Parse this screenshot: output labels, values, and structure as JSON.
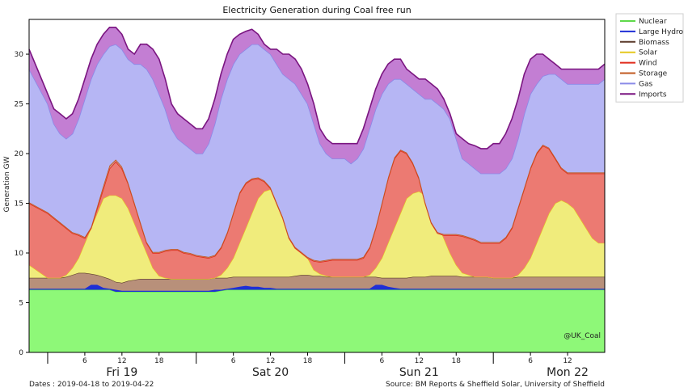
{
  "chart_data": {
    "type": "area",
    "title": "Electricity Generation during Coal free run",
    "ylabel": "Generation GW",
    "xlabel": "",
    "ylim": [
      0,
      33.5
    ],
    "yticks": [
      0,
      5,
      10,
      15,
      20,
      25,
      30
    ],
    "xlim_hours": [
      0,
      103
    ],
    "hour_ticks": [
      {
        "h": 0,
        "label": ""
      },
      {
        "h": 6,
        "label": "6"
      },
      {
        "h": 12,
        "label": "12"
      },
      {
        "h": 18,
        "label": "18"
      },
      {
        "h": 24,
        "label": ""
      },
      {
        "h": 30,
        "label": "6"
      },
      {
        "h": 36,
        "label": "12"
      },
      {
        "h": 42,
        "label": "18"
      },
      {
        "h": 48,
        "label": ""
      },
      {
        "h": 54,
        "label": "6"
      },
      {
        "h": 60,
        "label": "12"
      },
      {
        "h": 66,
        "label": "18"
      },
      {
        "h": 72,
        "label": ""
      },
      {
        "h": 78,
        "label": "6"
      },
      {
        "h": 84,
        "label": "12"
      }
    ],
    "day_labels": [
      {
        "h": 12,
        "label": "Fri 19"
      },
      {
        "h": 36,
        "label": "Sat 20"
      },
      {
        "h": 60,
        "label": "Sun 21"
      },
      {
        "h": 84,
        "label": "Mon 22"
      }
    ],
    "hours": [
      -3,
      0,
      1,
      2,
      3,
      4,
      5,
      6,
      7,
      8,
      9,
      10,
      11,
      12,
      13,
      14,
      15,
      16,
      17,
      18,
      19,
      20,
      21,
      22,
      23,
      24,
      25,
      26,
      27,
      28,
      29,
      30,
      31,
      32,
      33,
      34,
      35,
      36,
      37,
      38,
      39,
      40,
      41,
      42,
      43,
      44,
      45,
      46,
      47,
      48,
      49,
      50,
      51,
      52,
      53,
      54,
      55,
      56,
      57,
      58,
      59,
      60,
      61,
      62,
      63,
      64,
      65,
      66,
      67,
      68,
      69,
      70,
      71,
      72,
      73,
      74,
      75,
      76,
      77,
      78,
      79,
      80,
      81,
      82,
      83,
      84,
      85,
      86,
      87,
      88,
      89,
      90
    ],
    "legend_position": "outside-right",
    "series": [
      {
        "name": "Nuclear",
        "color": "#8ef878",
        "edge": "#5fd94a",
        "top": [
          6.3,
          6.3,
          6.3,
          6.3,
          6.3,
          6.3,
          6.3,
          6.3,
          6.3,
          6.3,
          6.3,
          6.3,
          6.1,
          6.1,
          6.1,
          6.1,
          6.1,
          6.1,
          6.1,
          6.1,
          6.1,
          6.1,
          6.1,
          6.1,
          6.1,
          6.1,
          6.1,
          6.1,
          6.1,
          6.2,
          6.3,
          6.3,
          6.3,
          6.3,
          6.3,
          6.3,
          6.3,
          6.3,
          6.3,
          6.3,
          6.3,
          6.3,
          6.3,
          6.3,
          6.3,
          6.3,
          6.3,
          6.3,
          6.3,
          6.3,
          6.3,
          6.3,
          6.3,
          6.3,
          6.3,
          6.3,
          6.3,
          6.3,
          6.3,
          6.3,
          6.3,
          6.3,
          6.3,
          6.3,
          6.3,
          6.3,
          6.3,
          6.3,
          6.3,
          6.3,
          6.3,
          6.3,
          6.3,
          6.3,
          6.3,
          6.3,
          6.3,
          6.3,
          6.3,
          6.3,
          6.3,
          6.3,
          6.3,
          6.3,
          6.3,
          6.3,
          6.3,
          6.3,
          6.3,
          6.3,
          6.3,
          6.3
        ]
      },
      {
        "name": "Large Hydro",
        "color": "#1f2fd6",
        "edge": "#1f2fd6",
        "top": [
          6.4,
          6.4,
          6.4,
          6.4,
          6.4,
          6.4,
          6.4,
          6.4,
          6.8,
          6.8,
          6.5,
          6.4,
          6.3,
          6.2,
          6.2,
          6.2,
          6.2,
          6.2,
          6.2,
          6.2,
          6.2,
          6.2,
          6.2,
          6.2,
          6.2,
          6.2,
          6.2,
          6.2,
          6.3,
          6.3,
          6.4,
          6.5,
          6.6,
          6.7,
          6.6,
          6.6,
          6.5,
          6.5,
          6.4,
          6.4,
          6.4,
          6.4,
          6.4,
          6.4,
          6.4,
          6.4,
          6.4,
          6.4,
          6.4,
          6.4,
          6.4,
          6.4,
          6.4,
          6.4,
          6.8,
          6.8,
          6.6,
          6.5,
          6.4,
          6.4,
          6.4,
          6.4,
          6.4,
          6.4,
          6.4,
          6.4,
          6.4,
          6.4,
          6.4,
          6.4,
          6.4,
          6.4,
          6.4,
          6.4,
          6.4,
          6.4,
          6.4,
          6.4,
          6.4,
          6.4,
          6.4,
          6.4,
          6.4,
          6.4,
          6.4,
          6.4,
          6.4,
          6.4,
          6.4,
          6.4,
          6.4,
          6.4
        ]
      },
      {
        "name": "Biomass",
        "color": "#b8907a",
        "edge": "#5a3a2a",
        "top": [
          7.5,
          7.5,
          7.5,
          7.5,
          7.6,
          7.8,
          8.0,
          8.0,
          7.9,
          7.8,
          7.6,
          7.4,
          7.1,
          7.0,
          7.2,
          7.3,
          7.4,
          7.4,
          7.4,
          7.4,
          7.4,
          7.4,
          7.4,
          7.4,
          7.4,
          7.4,
          7.4,
          7.4,
          7.5,
          7.5,
          7.5,
          7.6,
          7.6,
          7.6,
          7.6,
          7.6,
          7.6,
          7.6,
          7.6,
          7.6,
          7.6,
          7.7,
          7.8,
          7.8,
          7.7,
          7.7,
          7.6,
          7.6,
          7.6,
          7.6,
          7.6,
          7.6,
          7.6,
          7.6,
          7.6,
          7.5,
          7.5,
          7.5,
          7.5,
          7.5,
          7.6,
          7.6,
          7.6,
          7.7,
          7.7,
          7.7,
          7.7,
          7.7,
          7.6,
          7.6,
          7.6,
          7.6,
          7.6,
          7.5,
          7.5,
          7.5,
          7.5,
          7.6,
          7.6,
          7.6,
          7.6,
          7.6,
          7.6,
          7.6,
          7.6,
          7.6,
          7.6,
          7.6,
          7.6,
          7.6,
          7.6,
          7.6
        ]
      },
      {
        "name": "Solar",
        "color": "#f0ec7c",
        "edge": "#e6c81e",
        "top": [
          8.8,
          7.5,
          7.5,
          7.5,
          7.8,
          8.5,
          9.5,
          11.0,
          12.5,
          14.0,
          15.5,
          15.8,
          15.8,
          15.5,
          14.5,
          13.0,
          11.5,
          10.0,
          8.5,
          7.7,
          7.5,
          7.4,
          7.4,
          7.4,
          7.4,
          7.4,
          7.4,
          7.4,
          7.5,
          7.8,
          8.5,
          9.5,
          11.0,
          12.5,
          14.0,
          15.5,
          16.2,
          16.4,
          16.2,
          15.5,
          14.0,
          12.5,
          11.0,
          9.5,
          8.3,
          7.9,
          7.7,
          7.6,
          7.6,
          7.6,
          7.6,
          7.6,
          7.6,
          7.8,
          8.5,
          9.5,
          11.0,
          12.5,
          14.0,
          15.5,
          16.0,
          16.2,
          15.8,
          14.5,
          13.0,
          11.5,
          10.0,
          8.8,
          8.0,
          7.8,
          7.6,
          7.6,
          7.6,
          7.5,
          7.5,
          7.5,
          7.5,
          7.8,
          8.5,
          9.5,
          11.0,
          12.5,
          14.0,
          15.0,
          15.3,
          15.0,
          14.5,
          13.5,
          12.5,
          11.5,
          11.0,
          11.0
        ]
      },
      {
        "name": "Wind",
        "color": "#ec7a72",
        "edge": "#e02a1a",
        "top": [
          15.0,
          14.0,
          13.5,
          13.0,
          12.5,
          12.0,
          11.8,
          11.5,
          12.5,
          14.5,
          16.5,
          18.5,
          19.2,
          18.5,
          17.0,
          15.0,
          13.0,
          11.0,
          10.0,
          10.0,
          10.2,
          10.3,
          10.3,
          10.0,
          9.9,
          9.7,
          9.6,
          9.5,
          9.7,
          10.5,
          12.0,
          14.0,
          16.0,
          17.0,
          17.4,
          17.5,
          17.2,
          16.5,
          15.0,
          13.5,
          11.5,
          10.5,
          10.0,
          9.5,
          9.2,
          9.1,
          9.2,
          9.3,
          9.3,
          9.3,
          9.3,
          9.3,
          9.5,
          10.5,
          12.5,
          15.0,
          17.5,
          19.5,
          20.3,
          20.0,
          19.0,
          17.5,
          15.0,
          13.0,
          12.0,
          11.8,
          11.8,
          11.8,
          11.7,
          11.5,
          11.3,
          11.0,
          11.0,
          11.0,
          11.0,
          11.5,
          12.5,
          14.5,
          16.5,
          18.5,
          20.0,
          20.8,
          20.5,
          19.5,
          18.5,
          18.0,
          18.0,
          18.0,
          18.0,
          18.0,
          18.0,
          18.0
        ]
      },
      {
        "name": "Storage",
        "color": "#d09080",
        "edge": "#c05a20",
        "top": [
          15.1,
          14.1,
          13.6,
          13.1,
          12.6,
          12.1,
          11.9,
          11.6,
          12.6,
          14.7,
          16.8,
          18.8,
          19.4,
          18.7,
          17.1,
          15.1,
          13.1,
          11.1,
          10.1,
          10.1,
          10.3,
          10.4,
          10.4,
          10.1,
          10.0,
          9.8,
          9.7,
          9.6,
          9.8,
          10.6,
          12.1,
          14.1,
          16.1,
          17.1,
          17.5,
          17.6,
          17.3,
          16.6,
          15.1,
          13.6,
          11.6,
          10.6,
          10.1,
          9.6,
          9.3,
          9.2,
          9.3,
          9.4,
          9.4,
          9.4,
          9.4,
          9.4,
          9.6,
          10.6,
          12.6,
          15.1,
          17.6,
          19.6,
          20.4,
          20.1,
          19.1,
          17.6,
          15.1,
          13.1,
          12.1,
          11.9,
          11.9,
          11.9,
          11.8,
          11.6,
          11.4,
          11.1,
          11.1,
          11.1,
          11.1,
          11.6,
          12.6,
          14.6,
          16.6,
          18.6,
          20.1,
          20.9,
          20.6,
          19.6,
          18.6,
          18.1,
          18.1,
          18.1,
          18.1,
          18.1,
          18.1,
          18.1
        ]
      },
      {
        "name": "Gas",
        "color": "#b6b6f4",
        "edge": "#8a8ae8",
        "top": [
          28.5,
          25.0,
          23.0,
          22.0,
          21.5,
          22.0,
          23.5,
          25.5,
          27.5,
          29.0,
          30.0,
          30.8,
          31.0,
          30.5,
          29.5,
          29.0,
          29.0,
          28.5,
          27.5,
          26.0,
          24.5,
          22.5,
          21.5,
          21.0,
          20.5,
          20.0,
          20.0,
          21.0,
          23.0,
          25.5,
          27.5,
          29.0,
          30.0,
          30.5,
          31.0,
          31.0,
          30.5,
          30.0,
          29.0,
          28.0,
          27.5,
          27.0,
          26.0,
          25.0,
          23.0,
          21.0,
          20.0,
          19.5,
          19.5,
          19.5,
          19.0,
          19.5,
          20.5,
          22.5,
          24.5,
          26.0,
          27.0,
          27.5,
          27.5,
          27.0,
          26.5,
          26.0,
          25.5,
          25.5,
          25.0,
          24.5,
          23.5,
          21.5,
          19.5,
          19.0,
          18.5,
          18.0,
          18.0,
          18.0,
          18.0,
          18.5,
          19.5,
          21.5,
          24.0,
          26.0,
          27.0,
          27.8,
          28.0,
          28.0,
          27.5,
          27.0,
          27.0,
          27.0,
          27.0,
          27.0,
          27.0,
          27.5
        ]
      },
      {
        "name": "Imports",
        "color": "#c37ed3",
        "edge": "#7a1580",
        "top": [
          30.5,
          26.0,
          24.5,
          24.0,
          23.5,
          24.0,
          25.5,
          27.5,
          29.5,
          31.0,
          32.0,
          32.7,
          32.7,
          32.0,
          30.5,
          30.0,
          31.0,
          31.0,
          30.5,
          29.5,
          27.5,
          25.0,
          24.0,
          23.5,
          23.0,
          22.5,
          22.5,
          23.5,
          25.5,
          28.0,
          30.0,
          31.5,
          32.0,
          32.3,
          32.5,
          32.0,
          31.0,
          30.5,
          30.5,
          30.0,
          30.0,
          29.5,
          28.5,
          27.0,
          25.0,
          22.5,
          21.5,
          21.0,
          21.0,
          21.0,
          21.0,
          21.0,
          22.5,
          24.5,
          26.5,
          28.0,
          29.0,
          29.5,
          29.5,
          28.5,
          28.0,
          27.5,
          27.5,
          27.0,
          26.5,
          25.5,
          24.0,
          22.0,
          21.5,
          21.0,
          20.8,
          20.5,
          20.5,
          21.0,
          21.0,
          22.0,
          23.5,
          25.5,
          28.0,
          29.5,
          30.0,
          30.0,
          29.5,
          29.0,
          28.5,
          28.5,
          28.5,
          28.5,
          28.5,
          28.5,
          28.5,
          29.0
        ]
      }
    ],
    "annotation": "@UK_Coal",
    "dates_note": "Dates : 2019-04-18 to 2019-04-22",
    "source_note": "Source: BM Reports & Sheffield Solar, University of Sheffield"
  }
}
